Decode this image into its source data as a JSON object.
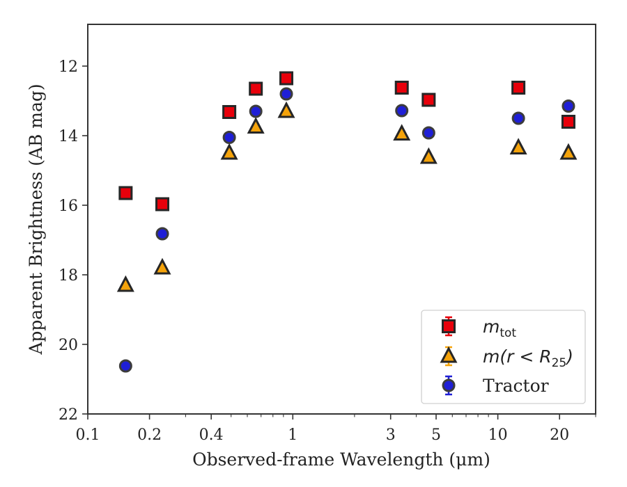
{
  "chart_data": {
    "type": "scatter",
    "xlabel": "Observed-frame Wavelength (μm)",
    "ylabel": "Apparent Brightness (AB mag)",
    "x_scale": "log",
    "xlim": [
      0.1,
      30
    ],
    "ylim": [
      22,
      10.8
    ],
    "y_inverted": true,
    "xticks": [
      {
        "value": 0.1,
        "label": "0.1"
      },
      {
        "value": 0.2,
        "label": "0.2"
      },
      {
        "value": 0.4,
        "label": "0.4"
      },
      {
        "value": 1,
        "label": "1"
      },
      {
        "value": 3,
        "label": "3"
      },
      {
        "value": 5,
        "label": "5"
      },
      {
        "value": 10,
        "label": "10"
      },
      {
        "value": 20,
        "label": "20"
      }
    ],
    "yticks": [
      {
        "value": 12,
        "label": "12"
      },
      {
        "value": 14,
        "label": "14"
      },
      {
        "value": 16,
        "label": "16"
      },
      {
        "value": 18,
        "label": "18"
      },
      {
        "value": 20,
        "label": "20"
      },
      {
        "value": 22,
        "label": "22"
      }
    ],
    "grid": false,
    "legend_position": "bottom-right",
    "series": [
      {
        "name": "m_tot",
        "legend_main": "m",
        "legend_sub": "tot",
        "marker": "square",
        "color": "#e8000b",
        "errorbar_color": "#e8000b",
        "x": [
          0.153,
          0.231,
          0.49,
          0.66,
          0.93,
          3.4,
          4.6,
          12.6,
          22.1
        ],
        "y": [
          15.65,
          15.97,
          13.32,
          12.65,
          12.35,
          12.62,
          12.97,
          12.62,
          13.6
        ]
      },
      {
        "name": "m(r < R_25)",
        "legend_main": "m(r < R",
        "legend_sub": "25",
        "legend_end": ")",
        "marker": "triangle",
        "color": "#f5a30a",
        "errorbar_color": "#f5a30a",
        "x": [
          0.153,
          0.231,
          0.49,
          0.66,
          0.93,
          3.4,
          4.6,
          12.6,
          22.1
        ],
        "y": [
          18.3,
          17.8,
          14.5,
          13.75,
          13.3,
          13.95,
          14.62,
          14.35,
          14.5
        ]
      },
      {
        "name": "Tractor",
        "legend_main": "Tractor",
        "marker": "circle",
        "color": "#1f1fd6",
        "errorbar_color": "#1f1fd6",
        "x": [
          0.153,
          0.231,
          0.49,
          0.66,
          0.93,
          3.4,
          4.6,
          12.6,
          22.1
        ],
        "y": [
          20.62,
          16.82,
          14.05,
          13.3,
          12.8,
          13.28,
          13.92,
          13.5,
          13.15
        ]
      }
    ]
  }
}
